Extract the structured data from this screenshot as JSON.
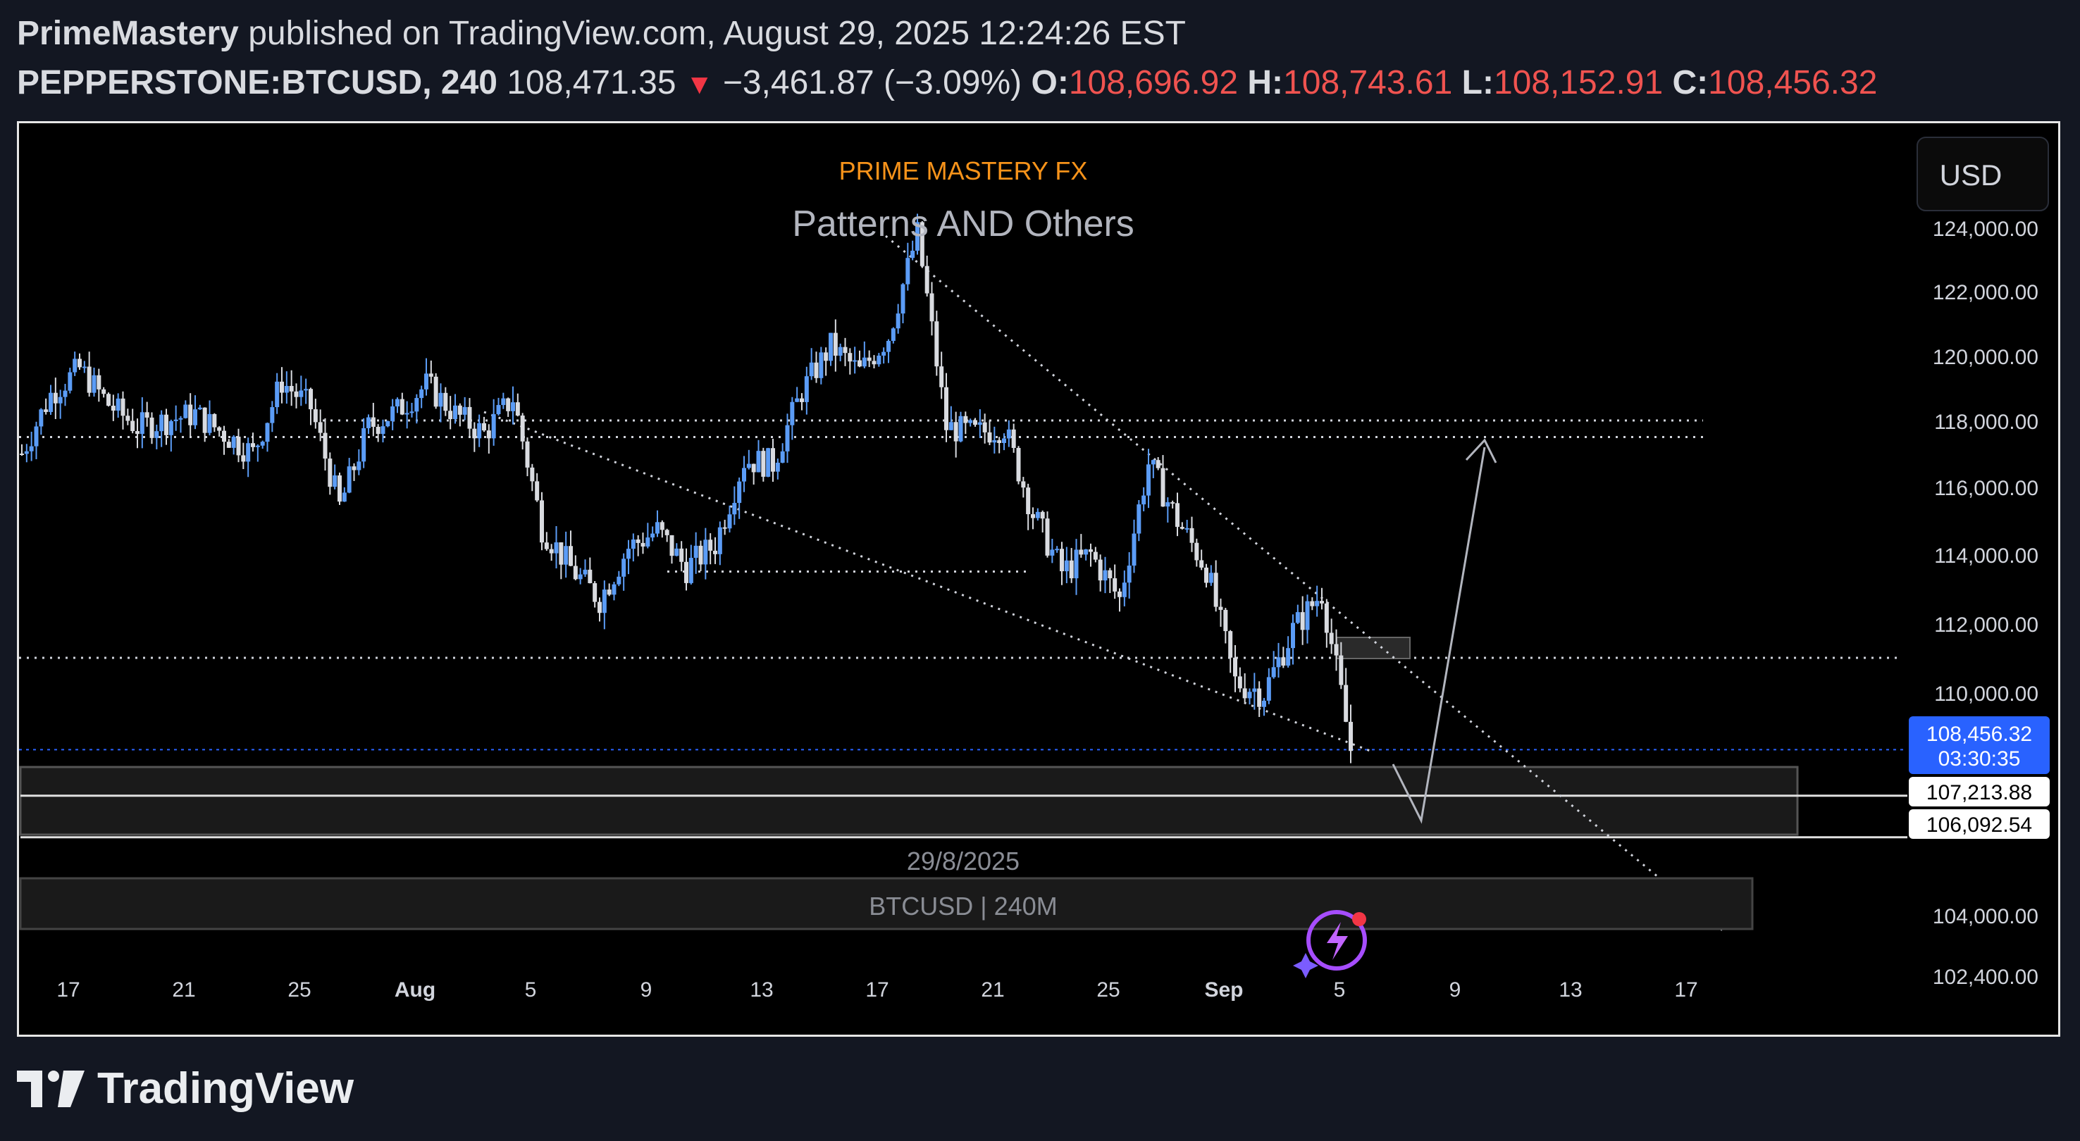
{
  "header": {
    "author": "PrimeMastery",
    "published_text": "published on TradingView.com, August 29, 2025 12:24:26 EST",
    "symbol": "PEPPERSTONE:BTCUSD, 240",
    "last_price": "108,471.35",
    "change": "−3,461.87 (−3.09%)",
    "ohlc": {
      "o_label": "O:",
      "o": "108,696.92",
      "h_label": "H:",
      "h": "108,743.61",
      "l_label": "L:",
      "l": "108,152.91",
      "c_label": "C:",
      "c": "108,456.32"
    }
  },
  "chart": {
    "watermark": "PRIME MASTERY FX",
    "title": "Patterns AND Others",
    "currency_button": "USD",
    "date_note": "29/8/2025",
    "pair_note": "BTCUSD | 240M",
    "price_tag_current": "108,456.32",
    "price_tag_countdown": "03:30:35",
    "price_tag_zone_top": "107,213.88",
    "price_tag_zone_bottom": "106,092.54"
  },
  "chart_data": {
    "type": "candlestick",
    "title": "Patterns AND Others",
    "y_ticks": [
      "124,000.00",
      "122,000.00",
      "120,000.00",
      "118,000.00",
      "116,000.00",
      "114,000.00",
      "112,000.00",
      "110,000.00",
      "104,000.00",
      "102,400.00"
    ],
    "y_tick_values": [
      124000,
      122000,
      120000,
      118000,
      116000,
      114000,
      112000,
      110000,
      104000,
      102400
    ],
    "x_ticks": [
      "17",
      "21",
      "25",
      "Aug",
      "5",
      "9",
      "13",
      "17",
      "21",
      "25",
      "Sep",
      "5",
      "9",
      "13",
      "17"
    ],
    "series_anchors": [
      {
        "date": "Jul 14",
        "price": 117000
      },
      {
        "date": "Jul 15",
        "price": 118800
      },
      {
        "date": "Jul 16",
        "price": 119600
      },
      {
        "date": "Jul 17",
        "price": 118500
      },
      {
        "date": "Jul 18",
        "price": 117800
      },
      {
        "date": "Jul 19",
        "price": 118000
      },
      {
        "date": "Jul 20",
        "price": 118200
      },
      {
        "date": "Jul 21",
        "price": 117600
      },
      {
        "date": "Jul 22",
        "price": 117000
      },
      {
        "date": "Jul 23",
        "price": 119200
      },
      {
        "date": "Jul 24",
        "price": 118400
      },
      {
        "date": "Jul 25",
        "price": 115400
      },
      {
        "date": "Jul 26",
        "price": 117800
      },
      {
        "date": "Jul 27",
        "price": 118300
      },
      {
        "date": "Jul 28",
        "price": 119100
      },
      {
        "date": "Jul 29",
        "price": 118200
      },
      {
        "date": "Jul 30",
        "price": 117600
      },
      {
        "date": "Jul 31",
        "price": 118700
      },
      {
        "date": "Aug 1",
        "price": 114800
      },
      {
        "date": "Aug 2",
        "price": 113600
      },
      {
        "date": "Aug 3",
        "price": 112700
      },
      {
        "date": "Aug 4",
        "price": 114200
      },
      {
        "date": "Aug 5",
        "price": 114700
      },
      {
        "date": "Aug 6",
        "price": 113600
      },
      {
        "date": "Aug 7",
        "price": 114300
      },
      {
        "date": "Aug 8",
        "price": 116800
      },
      {
        "date": "Aug 9",
        "price": 116700
      },
      {
        "date": "Aug 10",
        "price": 118900
      },
      {
        "date": "Aug 11",
        "price": 120300
      },
      {
        "date": "Aug 12",
        "price": 119500
      },
      {
        "date": "Aug 13",
        "price": 120600
      },
      {
        "date": "Aug 14",
        "price": 123800
      },
      {
        "date": "Aug 15",
        "price": 117800
      },
      {
        "date": "Aug 16",
        "price": 117600
      },
      {
        "date": "Aug 17",
        "price": 117800
      },
      {
        "date": "Aug 18",
        "price": 115200
      },
      {
        "date": "Aug 19",
        "price": 113500
      },
      {
        "date": "Aug 20",
        "price": 114000
      },
      {
        "date": "Aug 21",
        "price": 112700
      },
      {
        "date": "Aug 22",
        "price": 116700
      },
      {
        "date": "Aug 23",
        "price": 115000
      },
      {
        "date": "Aug 24",
        "price": 113600
      },
      {
        "date": "Aug 25",
        "price": 110300
      },
      {
        "date": "Aug 26",
        "price": 110000
      },
      {
        "date": "Aug 27",
        "price": 111800
      },
      {
        "date": "Aug 28",
        "price": 112900
      },
      {
        "date": "Aug 29",
        "price": 108456
      }
    ],
    "horizontal_levels": [
      118000,
      117500,
      113500,
      111000
    ],
    "zones": [
      {
        "from": 106092.54,
        "to": 107213.88
      }
    ],
    "ylim": [
      101800,
      126000
    ],
    "bull_color": "#5b9cf6",
    "bear_color": "#d9dbe0",
    "background": "#000000",
    "grid": false
  },
  "footer": {
    "brand": "TradingView"
  },
  "colors": {
    "accent": "#2962ff",
    "down": "#f23645",
    "watermark": "#f7931a"
  },
  "icons": {
    "currency": "usd",
    "ai_assistant": "sparkle-lightning-icon",
    "footer_logo": "tradingview-logo-icon"
  }
}
